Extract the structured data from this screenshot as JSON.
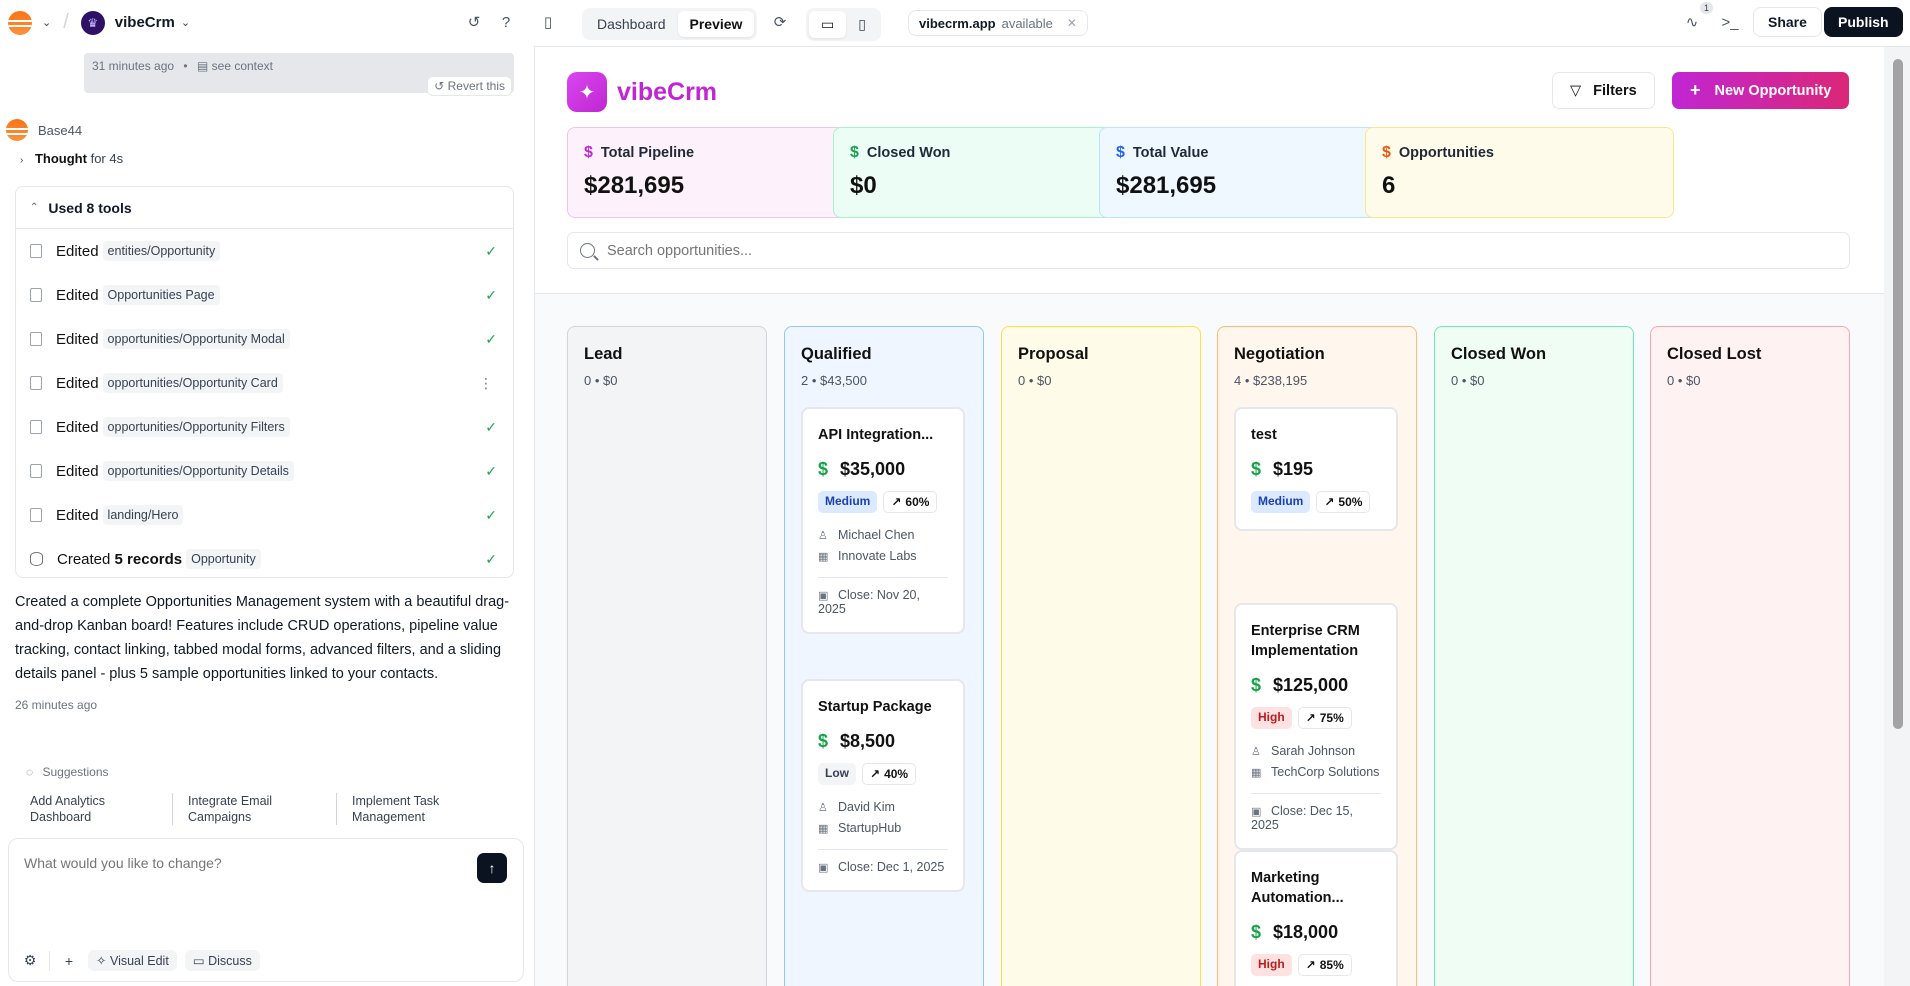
{
  "topbar": {
    "project_name": "vibeCrm",
    "tabs": [
      "Dashboard",
      "Preview"
    ],
    "active_tab": "Preview",
    "url_host": "vibecrm.app",
    "url_status": "available",
    "activity_count": "1",
    "share_label": "Share",
    "publish_label": "Publish"
  },
  "chat": {
    "context_time": "31 minutes ago",
    "context_sep": "•",
    "see_context": "see context",
    "revert_label": "Revert this",
    "bot_name": "Base44",
    "thought_prefix": "Thought",
    "thought_duration": "for 4s",
    "tools_header": "Used 8 tools",
    "tools": [
      {
        "verb": "Edited",
        "path": "entities/Opportunity",
        "status": "done"
      },
      {
        "verb": "Edited",
        "path": "Opportunities Page",
        "status": "done"
      },
      {
        "verb": "Edited",
        "path": "opportunities/Opportunity Modal",
        "status": "done"
      },
      {
        "verb": "Edited",
        "path": "opportunities/Opportunity Card",
        "status": "menu"
      },
      {
        "verb": "Edited",
        "path": "opportunities/Opportunity Filters",
        "status": "done"
      },
      {
        "verb": "Edited",
        "path": "opportunities/Opportunity Details",
        "status": "done"
      },
      {
        "verb": "Edited",
        "path": "landing/Hero",
        "status": "done"
      },
      {
        "verb": "Created 5 records",
        "path": "Opportunity",
        "status": "done"
      }
    ],
    "summary": "Created a complete Opportunities Management system with a beautiful drag-and-drop Kanban board! Features include CRUD operations, pipeline value tracking, contact linking, tabbed modal forms, advanced filters, and a sliding details panel - plus 5 sample opportunities linked to your contacts.",
    "summary_time": "26 minutes ago",
    "suggestions_label": "Suggestions",
    "suggestions": [
      "Add Analytics Dashboard",
      "Integrate Email Campaigns",
      "Implement Task Management"
    ],
    "composer_placeholder": "What would you like to change?",
    "visual_edit_label": "Visual Edit",
    "discuss_label": "Discuss"
  },
  "app": {
    "brand": "vibeCrm",
    "filters_label": "Filters",
    "new_button_label": "New Opportunity",
    "stats": [
      {
        "label": "Total Pipeline",
        "value": "$281,695",
        "color": "#c026d3",
        "bg": "#fdf2fb",
        "border": "#f5c2ee"
      },
      {
        "label": "Closed Won",
        "value": "$0",
        "color": "#16a34a",
        "bg": "#ecfdf5",
        "border": "#a7f3d0"
      },
      {
        "label": "Total Value",
        "value": "$281,695",
        "color": "#2563eb",
        "bg": "#eff8ff",
        "border": "#bae6fd"
      },
      {
        "label": "Opportunities",
        "value": "6",
        "color": "#ea580c",
        "bg": "#fffbeb",
        "border": "#fde68a"
      }
    ],
    "search_placeholder": "Search opportunities...",
    "columns": [
      {
        "title": "Lead",
        "summary": "0 • $0",
        "border": "#d1d5db",
        "bg": "#f3f4f6",
        "cards": []
      },
      {
        "title": "Qualified",
        "summary": "2 • $43,500",
        "border": "#93c5fd",
        "bg": "#eff6ff",
        "cards": [
          {
            "title": "API Integration...",
            "value": "$35,000",
            "priority": "Medium",
            "probability": "60%",
            "contact": "Michael Chen",
            "company": "Innovate Labs",
            "close": "Close: Nov 20, 2025"
          },
          {
            "title": "Startup Package",
            "value": "$8,500",
            "priority": "Low",
            "probability": "40%",
            "contact": "David Kim",
            "company": "StartupHub",
            "close": "Close: Dec 1, 2025"
          }
        ]
      },
      {
        "title": "Proposal",
        "summary": "0 • $0",
        "border": "#fde047",
        "bg": "#fefce8",
        "cards": []
      },
      {
        "title": "Negotiation",
        "summary": "4 • $238,195",
        "border": "#fdba74",
        "bg": "#fff7ed",
        "cards": [
          {
            "title": "test",
            "value": "$195",
            "priority": "Medium",
            "probability": "50%"
          },
          {
            "title": "Enterprise CRM Implementation",
            "value": "$125,000",
            "priority": "High",
            "probability": "75%",
            "contact": "Sarah Johnson",
            "company": "TechCorp Solutions",
            "close": "Close: Dec 15, 2025"
          },
          {
            "title": "Marketing Automation...",
            "value": "$18,000",
            "priority": "High",
            "probability": "85%"
          }
        ]
      },
      {
        "title": "Closed Won",
        "summary": "0 • $0",
        "border": "#6ee7b7",
        "bg": "#f0fdf4",
        "cards": []
      },
      {
        "title": "Closed Lost",
        "summary": "0 • $0",
        "border": "#fda4af",
        "bg": "#fef2f2",
        "cards": []
      }
    ]
  }
}
